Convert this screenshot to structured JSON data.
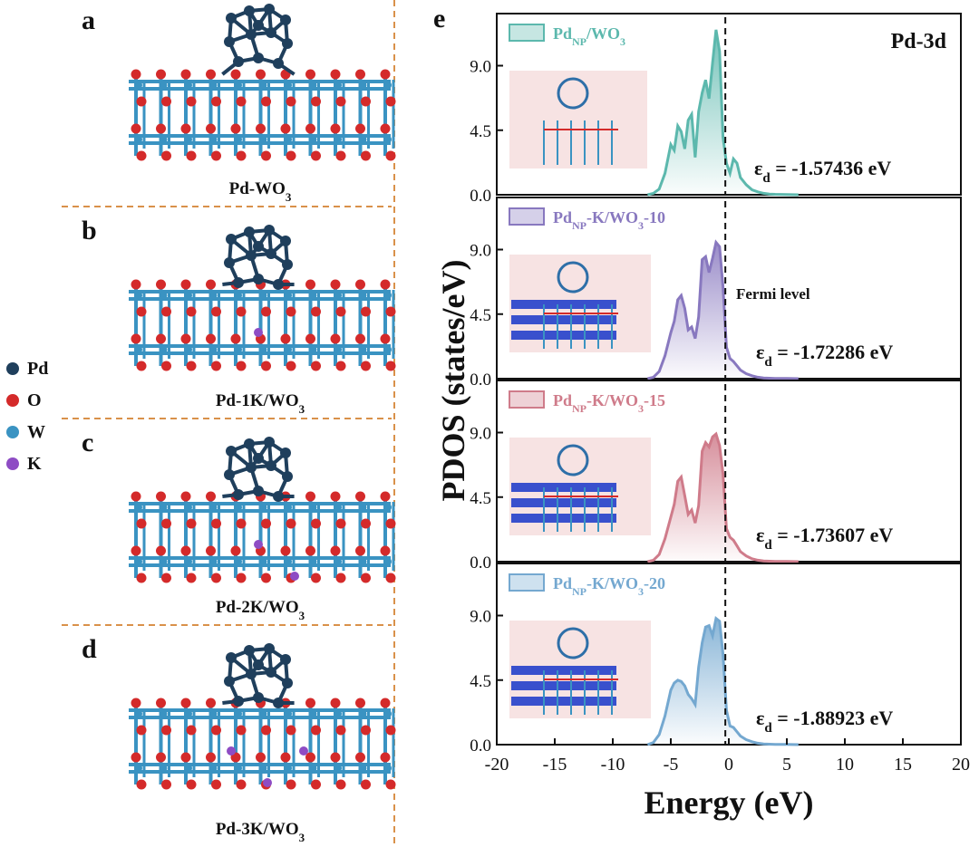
{
  "left": {
    "panels": [
      {
        "letter": "a",
        "caption_main": "Pd-WO",
        "caption_sub": "3",
        "k_atoms": 0
      },
      {
        "letter": "b",
        "caption_main": "Pd-1K/WO",
        "caption_sub": "3",
        "k_atoms": 1
      },
      {
        "letter": "c",
        "caption_main": "Pd-2K/WO",
        "caption_sub": "3",
        "k_atoms": 2
      },
      {
        "letter": "d",
        "caption_main": "Pd-3K/WO",
        "caption_sub": "3",
        "k_atoms": 3
      }
    ],
    "legend": [
      {
        "label": "Pd",
        "color": "#1f3f5c"
      },
      {
        "label": "O",
        "color": "#d42a2a"
      },
      {
        "label": "W",
        "color": "#3a93c2"
      },
      {
        "label": "K",
        "color": "#8e4cc4"
      }
    ]
  },
  "right": {
    "panel_letter": "e",
    "title": "Pd-3d",
    "fermi_label": "Fermi level"
  },
  "chart_data": {
    "type": "area",
    "xlabel": "Energy (eV)",
    "ylabel": "PDOS (states/eV)",
    "xlim": [
      -20,
      20
    ],
    "ylim": [
      0,
      12
    ],
    "xticks": [
      "-20",
      "-15",
      "-10",
      "-5",
      "0",
      "5",
      "10",
      "15",
      "20"
    ],
    "yticks": [
      "0.0",
      "4.5",
      "9.0"
    ],
    "fermi_x": -0.3,
    "series": [
      {
        "name_main": "Pd",
        "name_sub": "NP",
        "name_rest": "/WO",
        "name_sub2": "3",
        "name_tail": "",
        "color": "#5cb8ad",
        "ed_label": "ε",
        "ed_sub": "d",
        "ed_value": "= -1.57436 eV",
        "x": [
          -7,
          -6.5,
          -6,
          -5.5,
          -5,
          -4.7,
          -4.4,
          -4.1,
          -3.8,
          -3.5,
          -3.2,
          -2.9,
          -2.6,
          -2.3,
          -2.0,
          -1.7,
          -1.4,
          -1.1,
          -0.8,
          -0.5,
          -0.2,
          0.1,
          0.4,
          0.7,
          1.0,
          1.5,
          2.0,
          2.5,
          3.0,
          3.5,
          4.0,
          5.0,
          6.0
        ],
        "y": [
          0,
          0.1,
          0.4,
          1.5,
          3.5,
          3.1,
          4.8,
          4.4,
          3.2,
          5.2,
          5.6,
          2.6,
          5.8,
          7.1,
          8.0,
          6.7,
          9.2,
          11.5,
          10.0,
          4.0,
          2.2,
          1.5,
          2.5,
          2.2,
          1.2,
          0.7,
          0.35,
          0.2,
          0.1,
          0.05,
          0.03,
          0.01,
          0
        ]
      },
      {
        "name_main": "Pd",
        "name_sub": "NP",
        "name_rest": "-K/WO",
        "name_sub2": "3",
        "name_tail": "-10",
        "color": "#8878bf",
        "ed_label": "ε",
        "ed_sub": "d",
        "ed_value": "= -1.72286 eV",
        "x": [
          -7,
          -6.5,
          -6,
          -5.5,
          -5,
          -4.7,
          -4.4,
          -4.1,
          -3.8,
          -3.5,
          -3.2,
          -2.9,
          -2.6,
          -2.3,
          -2.0,
          -1.7,
          -1.4,
          -1.1,
          -0.8,
          -0.5,
          -0.2,
          0.1,
          0.4,
          0.7,
          1.0,
          1.5,
          2.0,
          2.5,
          3.0,
          3.5,
          4.0,
          5.0,
          6.0
        ],
        "y": [
          0,
          0.1,
          0.5,
          1.6,
          3.2,
          4.0,
          5.5,
          5.8,
          4.9,
          3.4,
          3.6,
          2.8,
          4.3,
          8.3,
          8.5,
          7.4,
          8.4,
          9.5,
          9.2,
          6.4,
          2.2,
          1.4,
          1.2,
          0.9,
          0.6,
          0.35,
          0.2,
          0.1,
          0.05,
          0.03,
          0.02,
          0.01,
          0
        ]
      },
      {
        "name_main": "Pd",
        "name_sub": "NP",
        "name_rest": "-K/WO",
        "name_sub2": "3",
        "name_tail": "-15",
        "color": "#cf7b8a",
        "ed_label": "ε",
        "ed_sub": "d",
        "ed_value": "= -1.73607 eV",
        "x": [
          -7,
          -6.5,
          -6,
          -5.5,
          -5,
          -4.7,
          -4.4,
          -4.1,
          -3.8,
          -3.5,
          -3.2,
          -2.9,
          -2.6,
          -2.3,
          -2.0,
          -1.7,
          -1.4,
          -1.1,
          -0.8,
          -0.5,
          -0.2,
          0.1,
          0.4,
          0.7,
          1.0,
          1.5,
          2.0,
          2.5,
          3.0,
          3.5,
          4.0,
          5.0,
          6.0
        ],
        "y": [
          0,
          0.1,
          0.5,
          1.6,
          3.1,
          4.0,
          5.6,
          5.9,
          4.6,
          3.3,
          3.6,
          2.7,
          3.9,
          7.7,
          8.3,
          8.0,
          8.7,
          8.9,
          8.1,
          6.1,
          2.3,
          1.7,
          1.5,
          1.1,
          0.7,
          0.4,
          0.2,
          0.1,
          0.05,
          0.03,
          0.02,
          0.01,
          0
        ]
      },
      {
        "name_main": "Pd",
        "name_sub": "NP",
        "name_rest": "-K/WO",
        "name_sub2": "3",
        "name_tail": "-20",
        "color": "#74a8d0",
        "ed_label": "ε",
        "ed_sub": "d",
        "ed_value": "= -1.88923 eV",
        "x": [
          -7,
          -6.5,
          -6,
          -5.5,
          -5,
          -4.7,
          -4.4,
          -4.1,
          -3.8,
          -3.5,
          -3.2,
          -2.9,
          -2.6,
          -2.3,
          -2.0,
          -1.7,
          -1.4,
          -1.1,
          -0.8,
          -0.5,
          -0.2,
          0.1,
          0.4,
          0.7,
          1.0,
          1.5,
          2.0,
          2.5,
          3.0,
          3.5,
          4.0,
          5.0,
          6.0
        ],
        "y": [
          0,
          0.15,
          0.7,
          2.0,
          3.8,
          4.3,
          4.5,
          4.4,
          4.1,
          3.5,
          3.2,
          2.8,
          5.4,
          7.1,
          8.2,
          8.3,
          7.6,
          8.8,
          8.6,
          6.3,
          2.4,
          1.3,
          1.2,
          0.9,
          0.6,
          0.35,
          0.2,
          0.1,
          0.05,
          0.03,
          0.02,
          0.01,
          0
        ]
      }
    ]
  }
}
